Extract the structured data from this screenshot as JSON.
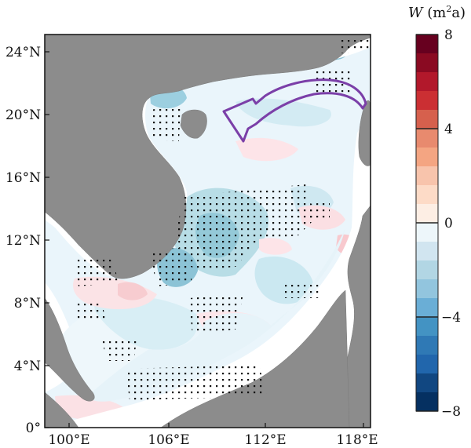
{
  "map": {
    "lat_ticks": [
      "24°N",
      "20°N",
      "16°N",
      "12°N",
      "8°N",
      "4°N",
      "0°"
    ],
    "lon_ticks": [
      "100°E",
      "106°E",
      "112°E",
      "118°E"
    ],
    "extent": {
      "lon": [
        99,
        119
      ],
      "lat": [
        0,
        25
      ]
    },
    "land_color": "#8c8c8c",
    "stipple_color": "#111111",
    "arrow_color": "#7b3fa8",
    "annotation": "purple-curved-arrow-westward-flow"
  },
  "colorbar": {
    "title_var": "W",
    "title_unit_open": " (m",
    "title_sup": "2",
    "title_unit_close": "a)",
    "ticks": [
      "8",
      "4",
      "0",
      "−4",
      "−8"
    ],
    "range": [
      -8,
      8
    ],
    "colors": [
      "#67001f",
      "#8a0a22",
      "#b2182b",
      "#cb2f33",
      "#d6604d",
      "#e88a6e",
      "#f4a582",
      "#f8c4ac",
      "#fddbc7",
      "#fdeee4",
      "#edf6fa",
      "#d1e5f0",
      "#b2d6e4",
      "#92c5de",
      "#6aaed6",
      "#4393c3",
      "#2f79b5",
      "#2166ac",
      "#114781",
      "#053061"
    ]
  }
}
